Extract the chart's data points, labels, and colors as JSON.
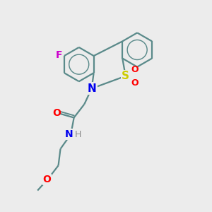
{
  "background_color": "#ececec",
  "bond_color": "#5a8a8a",
  "atom_colors": {
    "F": "#cc00cc",
    "N": "#0000ee",
    "S": "#cccc00",
    "O": "#ff0000",
    "H": "#888888",
    "C": "#5a8a8a"
  },
  "figsize": [
    3.0,
    3.0
  ],
  "dpi": 100,
  "xlim": [
    0,
    10
  ],
  "ylim": [
    0,
    10
  ]
}
